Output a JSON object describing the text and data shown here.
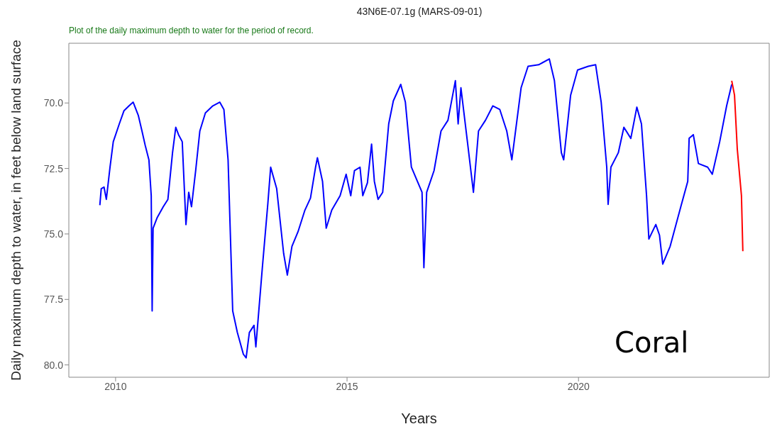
{
  "chart_data": {
    "type": "line",
    "title": "43N6E-07.1g (MARS-09-01)",
    "subtitle": "Plot of the daily maximum depth to water for the period of record.",
    "xlabel": "Years",
    "ylabel": "Daily maximum depth to water, in feet below land surface",
    "annotations": [
      "Coral"
    ],
    "xlim": [
      2008.99,
      2024.12
    ],
    "xticks": [
      2010,
      2015,
      2020
    ],
    "ylim": [
      80.47,
      67.72
    ],
    "yticks": [
      {
        "value": 70,
        "label": "70.0"
      },
      72.5,
      {
        "value": 75,
        "label": "75.0"
      },
      77.5,
      {
        "value": 80,
        "label": "80.0"
      }
    ],
    "marker": "none",
    "line_style": "solid",
    "series": [
      {
        "color": "#0000ff",
        "x": [
          2009.66,
          2009.69,
          2009.75,
          2009.8,
          2009.88,
          2009.95,
          2010.08,
          2010.18,
          2010.29,
          2010.38,
          2010.49,
          2010.57,
          2010.64,
          2010.72,
          2010.77,
          2010.79,
          2010.81,
          2010.9,
          2011.03,
          2011.13,
          2011.23,
          2011.3,
          2011.36,
          2011.44,
          2011.52,
          2011.58,
          2011.64,
          2011.73,
          2011.82,
          2011.94,
          2012.1,
          2012.25,
          2012.34,
          2012.43,
          2012.53,
          2012.63,
          2012.76,
          2012.82,
          2012.89,
          2012.99,
          2013.03,
          2013.17,
          2013.29,
          2013.35,
          2013.48,
          2013.63,
          2013.71,
          2013.81,
          2013.94,
          2014.09,
          2014.21,
          2014.32,
          2014.36,
          2014.47,
          2014.55,
          2014.67,
          2014.85,
          2014.98,
          2015.08,
          2015.16,
          2015.28,
          2015.34,
          2015.44,
          2015.53,
          2015.59,
          2015.67,
          2015.77,
          2015.9,
          2016.0,
          2016.16,
          2016.26,
          2016.39,
          2016.62,
          2016.66,
          2016.72,
          2016.88,
          2017.03,
          2017.18,
          2017.34,
          2017.4,
          2017.46,
          2017.61,
          2017.73,
          2017.84,
          2017.99,
          2018.15,
          2018.3,
          2018.45,
          2018.56,
          2018.76,
          2018.91,
          2019.14,
          2019.37,
          2019.48,
          2019.63,
          2019.68,
          2019.83,
          2019.98,
          2020.21,
          2020.37,
          2020.49,
          2020.61,
          2020.64,
          2020.7,
          2020.86,
          2020.98,
          2021.13,
          2021.26,
          2021.36,
          2021.47,
          2021.52,
          2021.67,
          2021.75,
          2021.82,
          2021.98,
          2022.21,
          2022.36,
          2022.39,
          2022.48,
          2022.59,
          2022.79,
          2022.89,
          2023.05,
          2023.2,
          2023.31
        ],
        "values": [
          73.9,
          73.27,
          73.21,
          73.68,
          72.45,
          71.48,
          70.8,
          70.3,
          70.11,
          69.97,
          70.47,
          71.07,
          71.62,
          72.17,
          73.54,
          77.94,
          74.78,
          74.37,
          73.96,
          73.68,
          71.9,
          70.93,
          71.21,
          71.48,
          74.64,
          73.41,
          73.96,
          72.58,
          71.07,
          70.38,
          70.11,
          69.97,
          70.25,
          72.17,
          77.94,
          78.76,
          79.59,
          79.73,
          78.76,
          78.49,
          79.31,
          76.29,
          73.82,
          72.45,
          73.27,
          75.74,
          76.57,
          75.47,
          74.92,
          74.09,
          73.63,
          72.45,
          72.09,
          72.99,
          74.78,
          74.09,
          73.54,
          72.72,
          73.54,
          72.58,
          72.45,
          73.54,
          73.05,
          71.57,
          72.99,
          73.68,
          73.41,
          70.8,
          69.92,
          69.29,
          69.97,
          72.45,
          73.41,
          76.29,
          73.41,
          72.58,
          71.07,
          70.66,
          69.15,
          70.8,
          69.42,
          71.62,
          73.41,
          71.07,
          70.66,
          70.11,
          70.25,
          71.07,
          72.17,
          69.42,
          68.6,
          68.54,
          68.32,
          69.15,
          71.9,
          72.17,
          69.7,
          68.74,
          68.6,
          68.54,
          69.97,
          72.45,
          73.87,
          72.45,
          71.9,
          70.93,
          71.35,
          70.16,
          70.8,
          73.54,
          75.19,
          74.64,
          75.05,
          76.15,
          75.47,
          73.96,
          72.99,
          71.35,
          71.21,
          72.31,
          72.45,
          72.72,
          71.48,
          70.11,
          69.29
        ]
      },
      {
        "color": "#ff0000",
        "x": [
          2023.31,
          2023.37,
          2023.43,
          2023.52,
          2023.55
        ],
        "values": [
          69.15,
          69.7,
          71.76,
          73.54,
          75.66
        ]
      }
    ]
  }
}
